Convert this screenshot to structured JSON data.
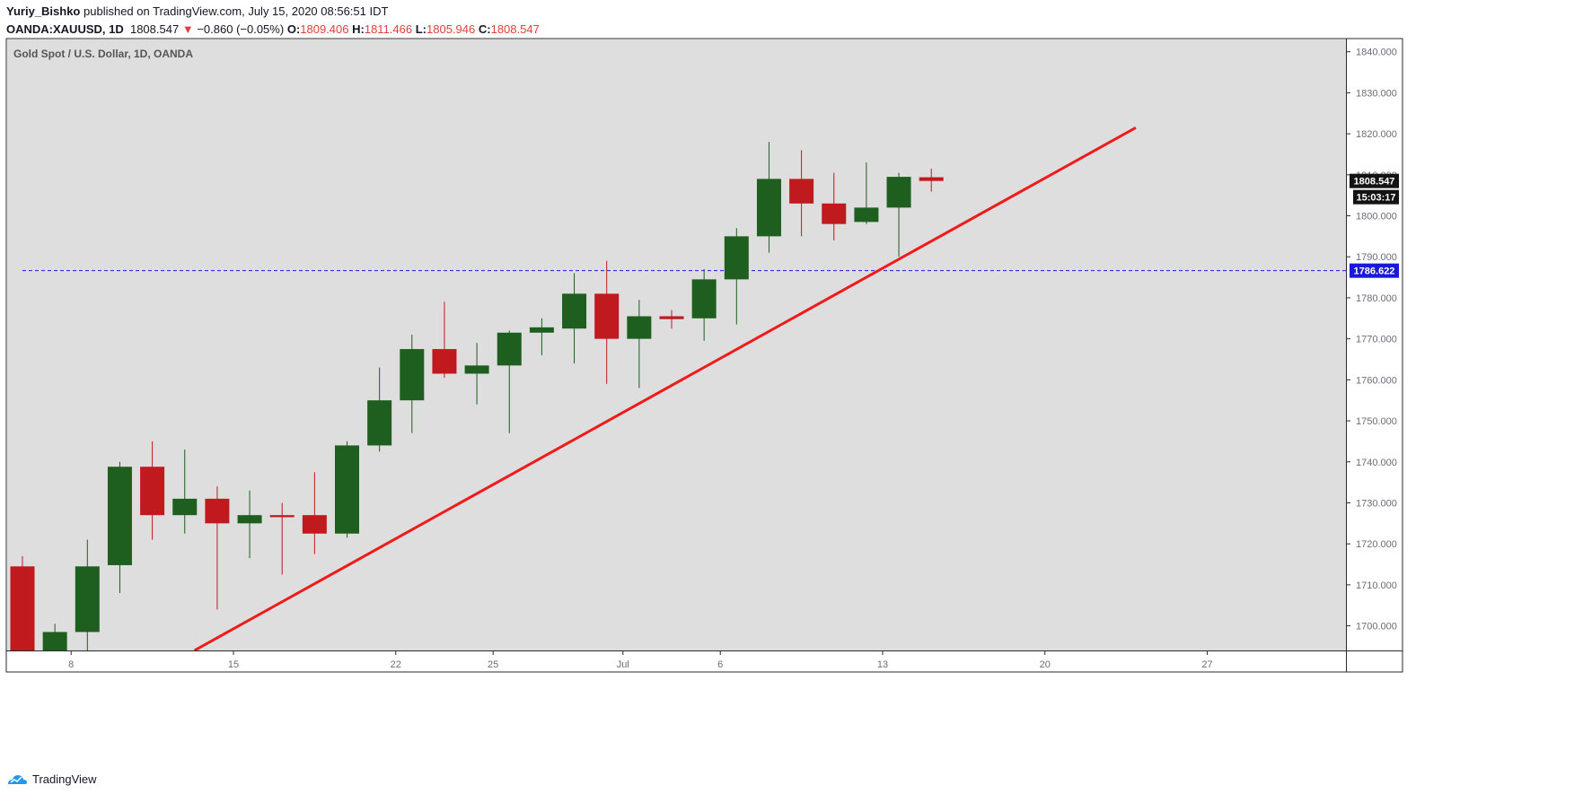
{
  "header": {
    "author": "Yuriy_Bishko",
    "published": "published on TradingView.com, July 15, 2020 08:56:51 IDT",
    "symbol": "OANDA:XAUUSD, 1D",
    "last": "1808.547",
    "change_arrow": "▼",
    "change": "−0.860 (−0.05%)",
    "o_label": "O:",
    "o_value": "1809.406",
    "h_label": "H:",
    "h_value": "1811.466",
    "l_label": "L:",
    "l_value": "1805.946",
    "c_label": "C:",
    "c_value": "1808.547"
  },
  "chart_data": {
    "type": "candlestick",
    "title": "Gold Spot / U.S. Dollar, 1D, OANDA",
    "ylim": [
      1694,
      1843
    ],
    "y_ticks": [
      "1700.000",
      "1710.000",
      "1720.000",
      "1730.000",
      "1740.000",
      "1750.000",
      "1760.000",
      "1770.000",
      "1780.000",
      "1790.000",
      "1800.000",
      "1810.000",
      "1820.000",
      "1830.000",
      "1840.000"
    ],
    "x_ticks": [
      {
        "label": "8",
        "index": 1.5
      },
      {
        "label": "15",
        "index": 6.5
      },
      {
        "label": "22",
        "index": 11.5
      },
      {
        "label": "25",
        "index": 14.5
      },
      {
        "label": "Jul",
        "index": 18.5
      },
      {
        "label": "6",
        "index": 21.5
      },
      {
        "label": "13",
        "index": 26.5
      },
      {
        "label": "20",
        "index": 31.5
      },
      {
        "label": "27",
        "index": 36.5
      }
    ],
    "candles": [
      {
        "o": 1714.5,
        "h": 1717.0,
        "l": 1690.0,
        "c": 1690.0
      },
      {
        "o": 1694.0,
        "h": 1700.5,
        "l": 1690.0,
        "c": 1698.5
      },
      {
        "o": 1698.5,
        "h": 1721.0,
        "l": 1693.0,
        "c": 1714.5
      },
      {
        "o": 1714.8,
        "h": 1740.0,
        "l": 1708.0,
        "c": 1738.8
      },
      {
        "o": 1738.8,
        "h": 1745.0,
        "l": 1721.0,
        "c": 1727.0
      },
      {
        "o": 1727.0,
        "h": 1743.0,
        "l": 1722.5,
        "c": 1731.0
      },
      {
        "o": 1731.0,
        "h": 1734.0,
        "l": 1704.0,
        "c": 1725.0
      },
      {
        "o": 1725.0,
        "h": 1733.0,
        "l": 1716.5,
        "c": 1727.0
      },
      {
        "o": 1727.0,
        "h": 1730.0,
        "l": 1712.5,
        "c": 1726.5
      },
      {
        "o": 1727.0,
        "h": 1737.5,
        "l": 1717.5,
        "c": 1722.5
      },
      {
        "o": 1722.5,
        "h": 1745.0,
        "l": 1721.5,
        "c": 1744.0
      },
      {
        "o": 1744.0,
        "h": 1763.0,
        "l": 1742.5,
        "c": 1755.0
      },
      {
        "o": 1755.0,
        "h": 1771.0,
        "l": 1747.0,
        "c": 1767.5
      },
      {
        "o": 1767.5,
        "h": 1779.0,
        "l": 1760.5,
        "c": 1761.5
      },
      {
        "o": 1761.5,
        "h": 1769.0,
        "l": 1754.0,
        "c": 1763.5
      },
      {
        "o": 1763.5,
        "h": 1772.0,
        "l": 1747.0,
        "c": 1771.5
      },
      {
        "o": 1771.5,
        "h": 1775.0,
        "l": 1766.0,
        "c": 1772.8
      },
      {
        "o": 1772.5,
        "h": 1786.0,
        "l": 1764.0,
        "c": 1781.0
      },
      {
        "o": 1781.0,
        "h": 1789.0,
        "l": 1759.0,
        "c": 1770.0
      },
      {
        "o": 1770.0,
        "h": 1779.5,
        "l": 1758.0,
        "c": 1775.5
      },
      {
        "o": 1775.5,
        "h": 1777.0,
        "l": 1772.5,
        "c": 1774.8
      },
      {
        "o": 1775.0,
        "h": 1787.0,
        "l": 1769.5,
        "c": 1784.5
      },
      {
        "o": 1784.5,
        "h": 1797.0,
        "l": 1773.5,
        "c": 1795.0
      },
      {
        "o": 1795.0,
        "h": 1818.0,
        "l": 1791.0,
        "c": 1809.0
      },
      {
        "o": 1809.0,
        "h": 1816.0,
        "l": 1795.0,
        "c": 1803.0
      },
      {
        "o": 1803.0,
        "h": 1810.5,
        "l": 1794.0,
        "c": 1798.0
      },
      {
        "o": 1798.5,
        "h": 1813.0,
        "l": 1798.0,
        "c": 1802.0
      },
      {
        "o": 1802.0,
        "h": 1810.5,
        "l": 1790.0,
        "c": 1809.5
      },
      {
        "o": 1809.4,
        "h": 1811.5,
        "l": 1805.9,
        "c": 1808.5
      }
    ],
    "trendline": [
      {
        "index": 5.3,
        "price": 1694.0
      },
      {
        "index": 34.3,
        "price": 1821.5
      }
    ],
    "horizontal_line": 1786.622,
    "price_labels": {
      "last": "1808.547",
      "countdown": "15:03:17",
      "hline": "1786.622"
    },
    "grid": false,
    "colors": {
      "up": "#1e5e1e",
      "down": "#c0191e",
      "background": "#dedede",
      "trendline": "#f01a1a",
      "hline": "#1a1adb"
    }
  },
  "footer": {
    "brand": "TradingView"
  }
}
